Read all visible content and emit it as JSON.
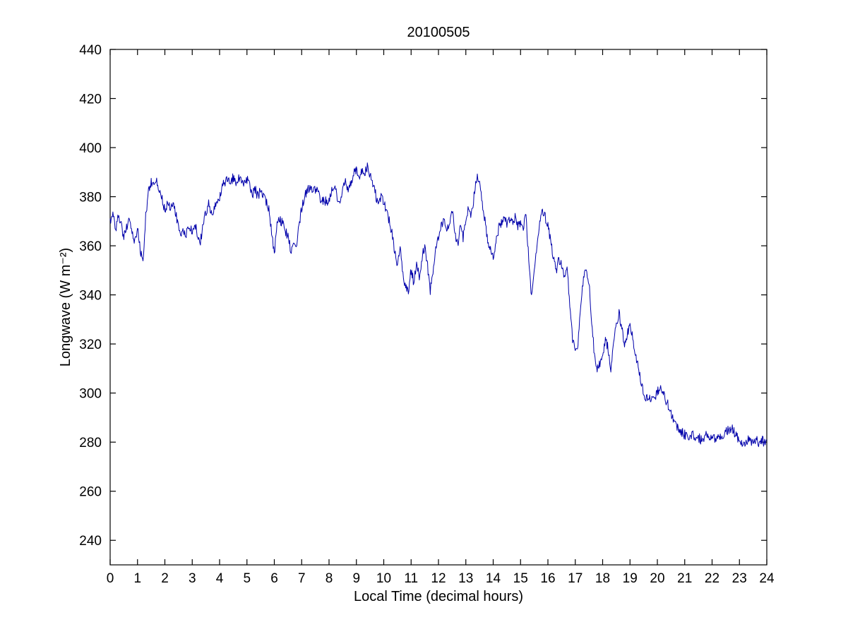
{
  "figure": {
    "title": "20100505",
    "xlabel": "Local Time (decimal hours)",
    "ylabel": "Longwave (W m⁻²)"
  },
  "chart_data": {
    "type": "line",
    "title": "20100505",
    "xlabel": "Local Time (decimal hours)",
    "ylabel": "Longwave (W m⁻²)",
    "xlim": [
      0,
      24
    ],
    "ylim": [
      230,
      440
    ],
    "x_ticks": [
      0,
      1,
      2,
      3,
      4,
      5,
      6,
      7,
      8,
      9,
      10,
      11,
      12,
      13,
      14,
      15,
      16,
      17,
      18,
      19,
      20,
      21,
      22,
      23,
      24
    ],
    "y_ticks": [
      240,
      260,
      280,
      300,
      320,
      340,
      360,
      380,
      400,
      420,
      440
    ],
    "grid": false,
    "legend": null,
    "line_color": "#0000AA",
    "background": "#FFFFFF",
    "noise_amplitude": 2.0,
    "x_start": 0,
    "x_step": 0.1,
    "values": [
      370,
      374,
      366,
      372,
      369,
      363,
      368,
      371,
      366,
      362,
      367,
      358,
      353,
      372,
      382,
      386,
      384,
      387,
      383,
      379,
      374,
      378,
      375,
      378,
      373,
      368,
      365,
      366,
      365,
      367,
      366,
      368,
      365,
      361,
      370,
      374,
      377,
      373,
      375,
      378,
      380,
      384,
      386,
      387,
      385,
      388,
      386,
      388,
      387,
      385,
      387,
      384,
      381,
      383,
      380,
      383,
      381,
      378,
      375,
      365,
      357,
      368,
      371,
      369,
      366,
      364,
      358,
      360,
      358,
      368,
      375,
      380,
      383,
      384,
      381,
      383,
      382,
      379,
      378,
      378,
      379,
      382,
      384,
      380,
      378,
      383,
      386,
      382,
      385,
      389,
      391,
      388,
      391,
      390,
      392,
      389,
      385,
      381,
      377,
      380,
      378,
      374,
      370,
      365,
      358,
      352,
      360,
      348,
      344,
      342,
      350,
      345,
      352,
      347,
      355,
      360,
      352,
      342,
      350,
      358,
      363,
      368,
      372,
      365,
      370,
      374,
      366,
      360,
      368,
      363,
      370,
      375,
      372,
      380,
      388,
      385,
      378,
      370,
      362,
      358,
      356,
      362,
      367,
      370,
      372,
      368,
      371,
      369,
      372,
      368,
      370,
      368,
      372,
      355,
      339,
      350,
      360,
      370,
      375,
      372,
      368,
      362,
      355,
      350,
      354,
      352,
      348,
      352,
      335,
      322,
      317,
      320,
      335,
      348,
      351,
      345,
      330,
      315,
      310,
      312,
      315,
      322,
      318,
      310,
      320,
      328,
      333,
      326,
      320,
      324,
      328,
      322,
      316,
      310,
      305,
      300,
      298,
      297,
      299,
      298,
      300,
      303,
      301,
      297,
      295,
      292,
      289,
      287,
      285,
      284,
      283,
      283,
      282,
      283,
      282,
      282,
      281,
      282,
      283,
      282,
      282,
      281,
      282,
      283,
      283,
      284,
      285,
      286,
      284,
      282,
      281,
      280,
      280,
      281,
      280,
      280,
      281,
      280,
      281,
      280,
      281
    ]
  }
}
